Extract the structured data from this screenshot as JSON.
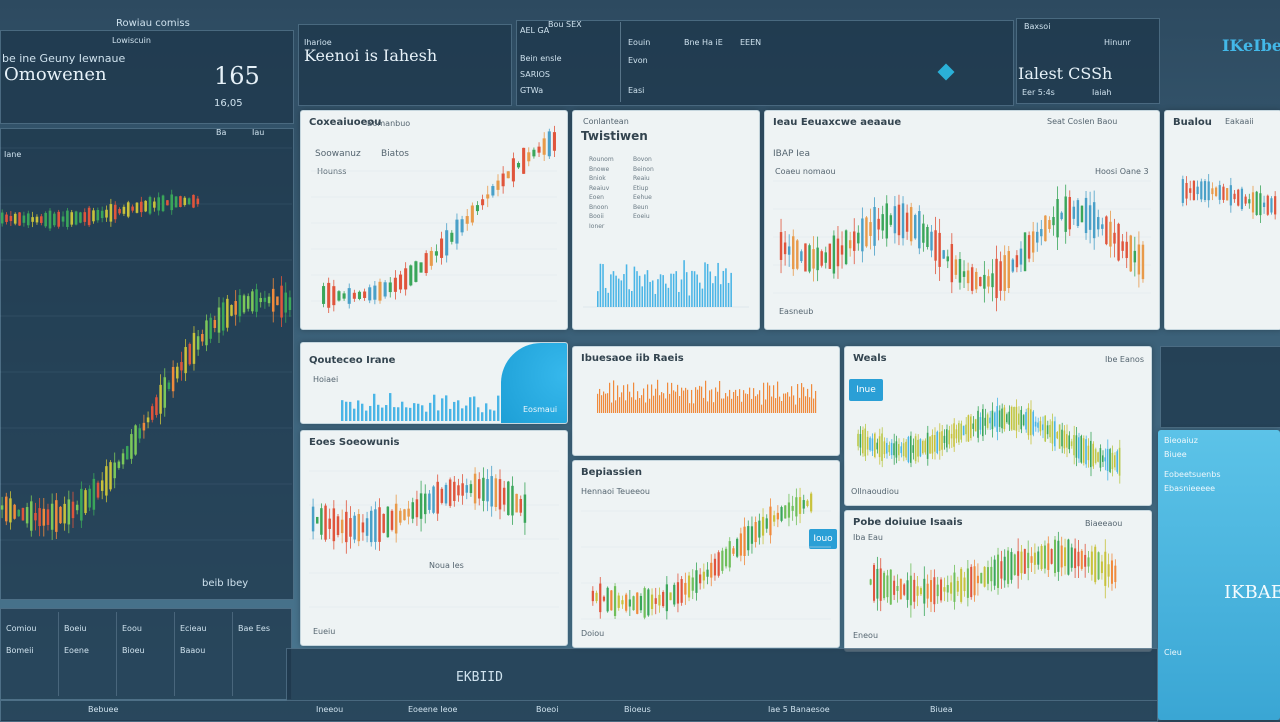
{
  "colors": {
    "up": "#3aa65a",
    "down": "#e0553c",
    "accent": "#2a9fd6",
    "yellow": "#c8c23c",
    "orange": "#f08a3c",
    "blue": "#4ab5e6"
  },
  "header": {
    "left_tag": "Rowiau comiss",
    "left_sub": "Lowiscuin",
    "left_title1": "be ine Geuny Iewnaue",
    "left_title2": "Omowenen",
    "left_value": "165",
    "left_value_sub": "16,05",
    "box_title": "Keenoi is Iahesh",
    "box_label": "Iharioe",
    "m1": "AEL GA",
    "m2": "Bou SEX",
    "m3": "Bein ensle",
    "m4": "SARIOS",
    "m5": "GTWa",
    "m6": "Eouin",
    "m7": "Bne Ha iE",
    "m8": "EEEN",
    "m9": "Evon",
    "m10": "Easi",
    "r1": "Baxsoi",
    "r2": "Hinunr",
    "r3": "Ialest CSSh",
    "r4": "Eer 5:4s",
    "r5": "Iaiah",
    "brand": "IKeIbeR"
  },
  "left_panel": {
    "tag": "Iane",
    "footer": "beib Ibey",
    "t1": "Ba",
    "t2": "Iau"
  },
  "cards": {
    "c1": {
      "title": "Coxeaiuoeou",
      "title2": "Bomanbuo",
      "s1": "Soowanuz",
      "s2": "Biatos",
      "s3": "Hounss"
    },
    "c2": {
      "title": "Twistiwen",
      "s1": "Conlantean",
      "rows": [
        "Rounom",
        "Bnowe",
        "Bniok",
        "Reaiuv",
        "Eoen",
        "Bnoon",
        "Booii",
        "Ioner"
      ],
      "r2": [
        "Bovon",
        "Beinon",
        "Reaiu",
        "Etiup",
        "Eehue",
        "Beun",
        "Eoeiu"
      ]
    },
    "c3": {
      "title": "Ieau Eeuaxcwe aeaaue",
      "right": "Seat Coslen Baou",
      "s1": "IBAP Iea",
      "s2": "Coaeu nomaou",
      "r": "Hoosi Oane 3",
      "foot": "Easneub"
    },
    "c4": {
      "title": "Bualou",
      "title2": "Eakaaii"
    },
    "c5": {
      "title": "Qouteceo Irane",
      "s1": "Hoiaei",
      "foot": "Eosmaui"
    },
    "c6": {
      "title": "Ibuesaoe iib Raeis"
    },
    "c7": {
      "title": "Weals",
      "right": "Ibe Eanos",
      "btn": "Inue",
      "foot": "Ollnaoudiou"
    },
    "c8": {
      "title": "Eoes Soeowunis",
      "s1": "Noua Ies",
      "foot": "Eueiu"
    },
    "c9": {
      "title": "Bepiassien",
      "s1": "Hennaoi Teueeou",
      "btn": "Iouo",
      "foot": "Doiou"
    },
    "c10": {
      "title": "Pobe doiuiue Isaais",
      "s1": "Iba Eau",
      "right": "Biaeeaou",
      "foot": "Eneou"
    }
  },
  "right_panel": {
    "t1": "Bieoaiuz",
    "t2": "Biuee",
    "t3": "Eobeetsuenbs",
    "t4": "Ebasnieeeee",
    "big": "IKBAE",
    "t5": "Cieu"
  },
  "bottom": {
    "cells": [
      "Comiou",
      "Boeiu",
      "Eoou",
      "Ecieau",
      "Bae Ees",
      "Bomeii",
      "Eoene",
      "Bioeu",
      "Baaou"
    ],
    "stat": "EKBIID",
    "labels": [
      "Bebuee",
      "Ineeou",
      "Eoeene Ieoe",
      "Boeoi",
      "Bioeus",
      "Iae 5 Banaesoe",
      "Biuea"
    ]
  }
}
